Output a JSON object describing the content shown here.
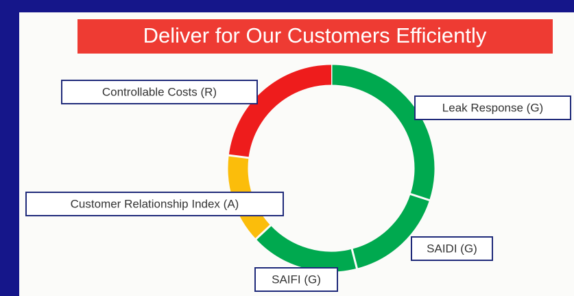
{
  "chart_data": {
    "type": "donut",
    "title": "Deliver for Our Customers Efficiently",
    "categories": [
      "Leak Response (G)",
      "SAIDI (G)",
      "SAIFI (G)",
      "Customer Relationship Index (A)",
      "Controllable Costs (R)"
    ],
    "values": [
      30,
      16,
      17,
      14,
      23
    ],
    "colors": [
      "#00a94f",
      "#00a94f",
      "#00a94f",
      "#fbbd0b",
      "#ee1c1c"
    ]
  }
}
